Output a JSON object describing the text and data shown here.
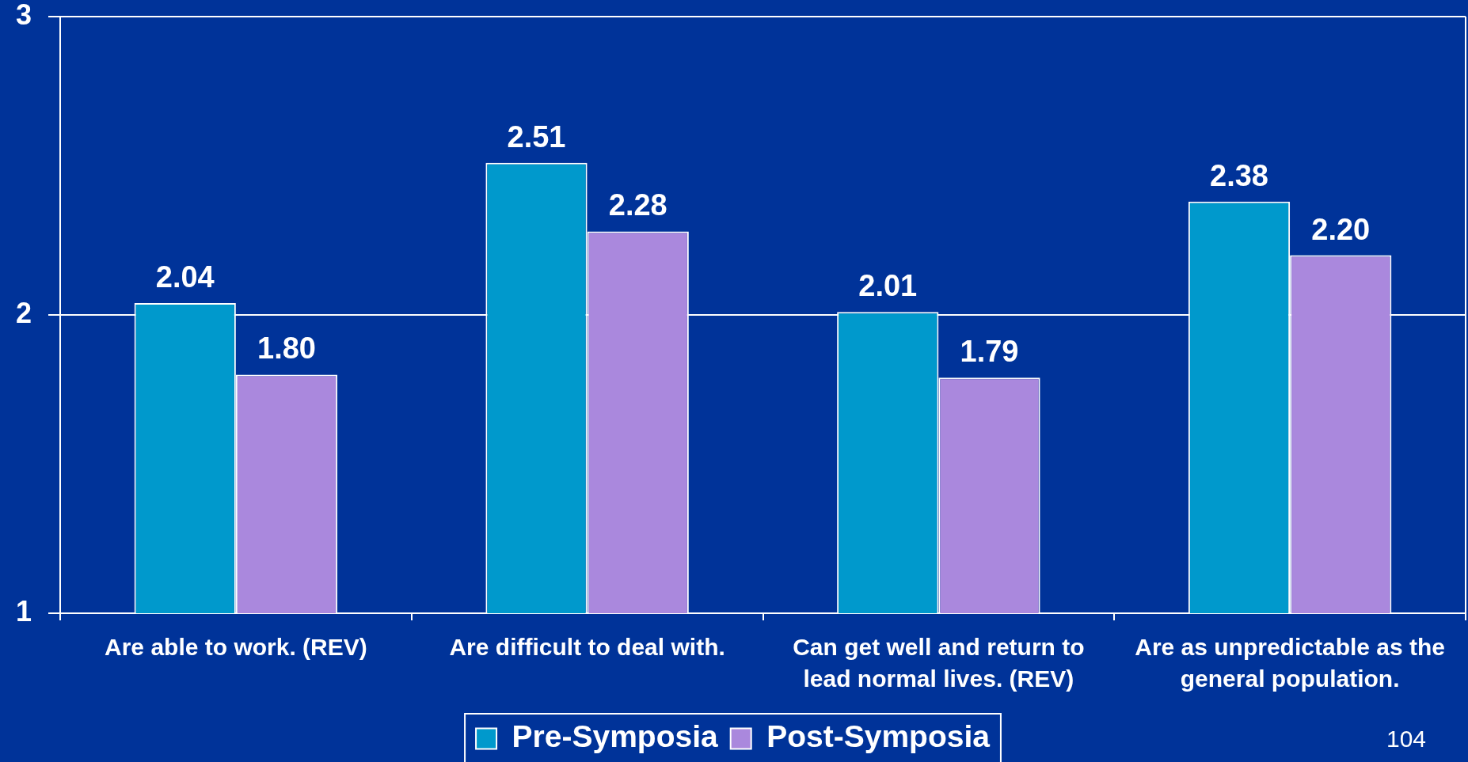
{
  "chart_data": {
    "type": "bar",
    "categories": [
      "Are able to work. (REV)",
      "Are difficult to deal with.",
      "Can get well and return to lead normal lives. (REV)",
      "Are as unpredictable as the general population."
    ],
    "series": [
      {
        "name": "Pre-Symposia",
        "color": "#0099cc",
        "values": [
          2.04,
          2.51,
          2.01,
          2.38
        ],
        "value_labels": [
          "2.04",
          "2.51",
          "2.01",
          "2.38"
        ]
      },
      {
        "name": "Post-Symposia",
        "color": "#aa88dd",
        "values": [
          1.8,
          2.28,
          1.79,
          2.2
        ],
        "value_labels": [
          "1.80",
          "2.28",
          "1.79",
          "2.20"
        ]
      }
    ],
    "ylim": [
      1,
      3
    ],
    "yticks": [
      1,
      2,
      3
    ],
    "grid": "y",
    "legend": "bottom",
    "annotations": [
      "104"
    ]
  }
}
